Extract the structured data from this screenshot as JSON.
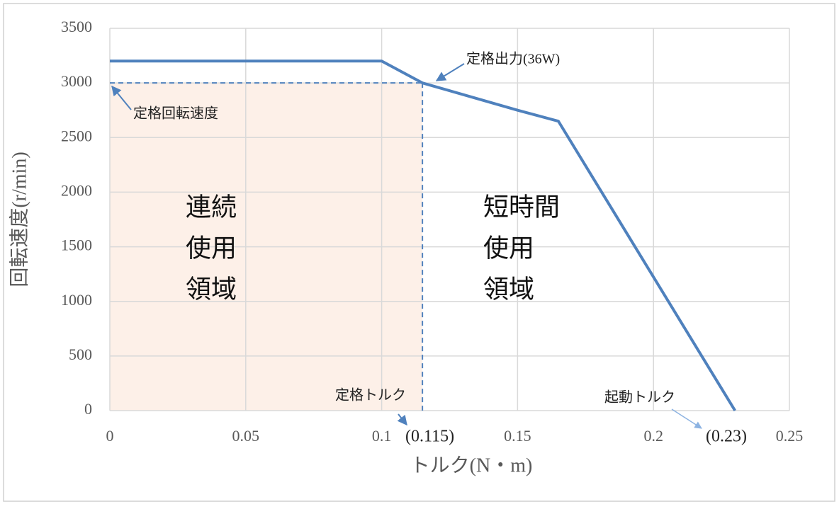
{
  "chart_data": {
    "type": "line",
    "x_label": "トルク(N・m)",
    "y_label": "回転速度(r/min)",
    "x": [
      0,
      0.1,
      0.115,
      0.15,
      0.165,
      0.23
    ],
    "series": [
      {
        "color": "#4f81bd",
        "values": [
          3200,
          3200,
          3000,
          2750,
          2650,
          0
        ]
      }
    ],
    "xlim": [
      0,
      0.25
    ],
    "xticks": [
      0,
      0.05,
      0.1,
      0.15,
      0.2,
      0.25
    ],
    "ylim": [
      0,
      3500
    ],
    "yticks": [
      0,
      500,
      1000,
      1500,
      2000,
      2500,
      3000,
      3500
    ],
    "grid": true,
    "rated_speed": 3000,
    "rated_torque": {
      "value": 0.115,
      "label": "(0.115)"
    },
    "stall_torque": {
      "value": 0.23,
      "label": "(0.23)"
    },
    "annotations": {
      "rated_output": "定格出力(36W)",
      "rated_speed_label": "定格回転速度",
      "rated_torque_label": "定格トルク",
      "stall_torque_label": "起動トルク"
    },
    "regions": {
      "continuous": [
        "連続",
        "使用",
        "領域"
      ],
      "short_time": [
        "短時間",
        "使用",
        "領域"
      ]
    },
    "shade_color": "#fdf0e8"
  }
}
